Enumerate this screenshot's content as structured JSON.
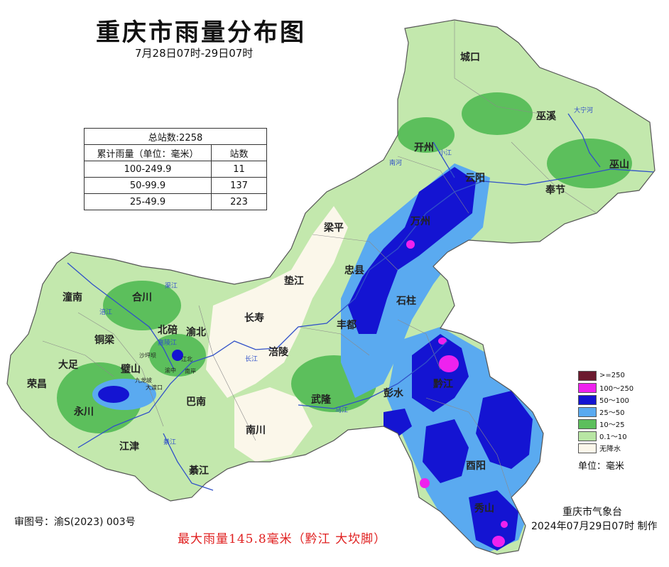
{
  "title": "重庆市雨量分布图",
  "subtitle": "7月28日07时-29日07时",
  "stats": {
    "total": "总站数:2258",
    "col_range": "累计雨量（单位：毫米）",
    "col_count": "站数",
    "rows": [
      {
        "range": "100-249.9",
        "count": "11"
      },
      {
        "range": "50-99.9",
        "count": "137"
      },
      {
        "range": "25-49.9",
        "count": "223"
      }
    ]
  },
  "legend": {
    "items": [
      {
        "label": ">=250",
        "color": "#6b1a2e"
      },
      {
        "label": "100～250",
        "color": "#ee22ee"
      },
      {
        "label": "50～100",
        "color": "#1414d2"
      },
      {
        "label": "25～50",
        "color": "#5aaaf0"
      },
      {
        "label": "10～25",
        "color": "#5cbf5c"
      },
      {
        "label": "0.1～10",
        "color": "#b8e6a4"
      },
      {
        "label": "无降水",
        "color": "#fbf7ea"
      }
    ],
    "unit": "单位：毫米"
  },
  "places": [
    "城口",
    "巫溪",
    "开州",
    "云阳",
    "巫山",
    "奉节",
    "梁平",
    "万州",
    "忠县",
    "垫江",
    "石柱",
    "长寿",
    "丰都",
    "潼南",
    "合川",
    "铜梁",
    "北碚",
    "渝北",
    "大足",
    "璧山",
    "涪陵",
    "荣昌",
    "永川",
    "巴南",
    "武隆",
    "彭水",
    "黔江",
    "江津",
    "南川",
    "綦江",
    "酉阳",
    "秀山"
  ],
  "rivers": [
    "大宁河",
    "南河",
    "小江",
    "长江",
    "涪江",
    "渠江",
    "嘉陵江",
    "乌江",
    "綦江"
  ],
  "urban": [
    "沙坪坝",
    "九龙坡",
    "大渡口",
    "江北",
    "南岸",
    "渝中"
  ],
  "review_no": "审图号：渝S(2023) 003号",
  "footer_note": "最大雨量145.8毫米（黔江 大坎脚）",
  "agency": "重庆市气象台",
  "made_at": "2024年07月29日07时 制作"
}
